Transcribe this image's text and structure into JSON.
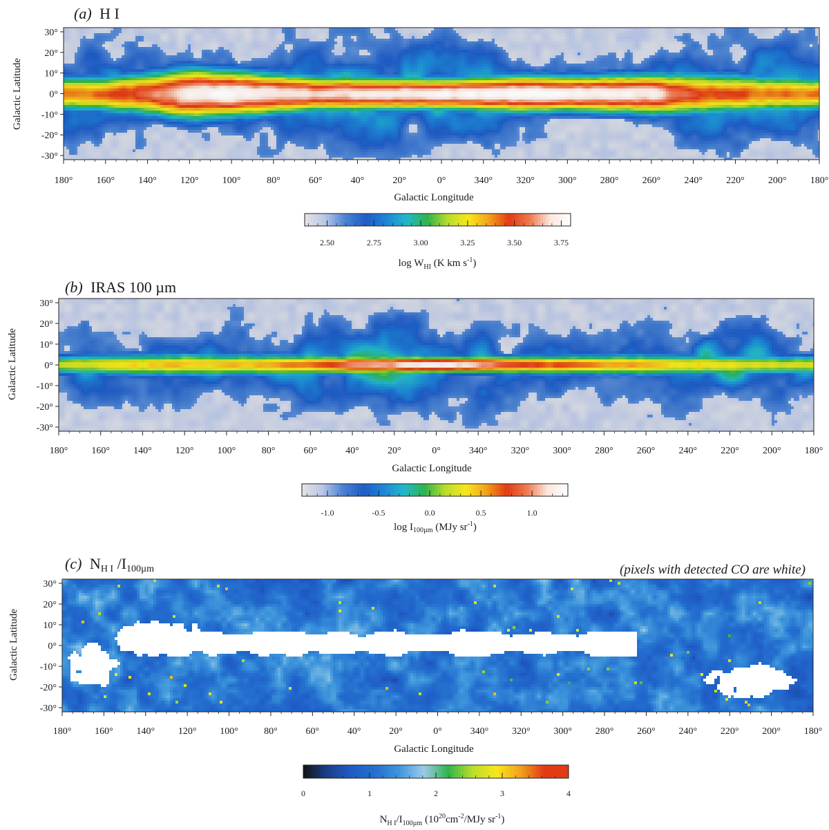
{
  "chart_data": [
    {
      "type": "heatmap",
      "title_letter": "(a)",
      "title_text": "H I",
      "xlabel": "Galactic Longitude",
      "ylabel": "Galactic Latitude",
      "x_ticks": [
        "180°",
        "160°",
        "140°",
        "120°",
        "100°",
        "80°",
        "60°",
        "40°",
        "20°",
        "0°",
        "340°",
        "320°",
        "300°",
        "280°",
        "260°",
        "240°",
        "220°",
        "200°",
        "180°"
      ],
      "y_ticks": [
        "30°",
        "20°",
        "10°",
        "0°",
        "-10°",
        "-20°",
        "-30°"
      ],
      "x_range_deg": [
        180,
        -180
      ],
      "y_range_deg": [
        -32,
        32
      ],
      "colorbar": {
        "label_main": "log W",
        "label_sub": "HI",
        "label_rest": " (K km s",
        "label_sup": "-1",
        "label_end": ")",
        "ticks": [
          "2.50",
          "2.75",
          "3.00",
          "3.25",
          "3.50",
          "3.75"
        ],
        "tick_values": [
          2.5,
          2.75,
          3.0,
          3.25,
          3.5,
          3.75
        ],
        "range": [
          2.38,
          3.8
        ]
      },
      "colormap": [
        "#e4e4e4",
        "#b9c6e6",
        "#4a82d2",
        "#1f5cc6",
        "#1d87d6",
        "#22b8c8",
        "#2fb34c",
        "#b9dd2a",
        "#f7e71c",
        "#f3a21c",
        "#e23a14",
        "#ee7a50",
        "#fbe7de",
        "#ffffff"
      ],
      "profile": {
        "plane_strength": [
          0.72,
          0.74,
          0.82,
          0.98,
          1.0,
          0.96,
          0.92,
          0.95,
          0.97,
          0.98,
          1.0,
          1.0,
          1.0,
          0.98,
          0.96,
          0.78,
          0.76,
          0.72,
          0.72
        ],
        "plane_sigma_deg": [
          6.0,
          6.5,
          7.5,
          9.0,
          8.0,
          7.0,
          6.0,
          6.0,
          5.5,
          5.5,
          6.0,
          6.5,
          6.0,
          6.5,
          7.0,
          7.5,
          7.0,
          6.5,
          6.0
        ],
        "halo_level": [
          0.42,
          0.44,
          0.38,
          0.3,
          0.4,
          0.46,
          0.48,
          0.52,
          0.56,
          0.55,
          0.48,
          0.36,
          0.3,
          0.33,
          0.4,
          0.46,
          0.52,
          0.48,
          0.42
        ]
      }
    },
    {
      "type": "heatmap",
      "title_letter": "(b)",
      "title_text": "IRAS 100 µm",
      "xlabel": "Galactic Longitude",
      "ylabel": "Galactic Latitude",
      "x_ticks": [
        "180°",
        "160°",
        "140°",
        "120°",
        "100°",
        "80°",
        "60°",
        "40°",
        "20°",
        "0°",
        "340°",
        "320°",
        "300°",
        "280°",
        "260°",
        "240°",
        "220°",
        "200°",
        "180°"
      ],
      "y_ticks": [
        "30°",
        "20°",
        "10°",
        "0°",
        "-10°",
        "-20°",
        "-30°"
      ],
      "x_range_deg": [
        180,
        -180
      ],
      "y_range_deg": [
        -32,
        32
      ],
      "colorbar": {
        "label_main": "log I",
        "label_sub": "100µm",
        "label_rest": "  (MJy sr",
        "label_sup": "-1",
        "label_end": ")",
        "ticks": [
          "-1.0",
          "-0.5",
          "0.0",
          "0.5",
          "1.0"
        ],
        "tick_values": [
          -1.0,
          -0.5,
          0.0,
          0.5,
          1.0
        ],
        "range": [
          -1.25,
          1.35
        ]
      },
      "colormap": [
        "#e4e4e4",
        "#b9c6e6",
        "#4a82d2",
        "#1f5cc6",
        "#1d87d6",
        "#22b8c8",
        "#2fb34c",
        "#b9dd2a",
        "#f7e71c",
        "#f3a21c",
        "#e23a14",
        "#ee7a50",
        "#fbe7de",
        "#ffffff"
      ],
      "profile": {
        "plane_strength": [
          0.58,
          0.6,
          0.63,
          0.66,
          0.66,
          0.68,
          0.75,
          0.85,
          0.92,
          1.0,
          0.9,
          0.8,
          0.75,
          0.7,
          0.68,
          0.62,
          0.6,
          0.58,
          0.58
        ],
        "plane_sigma_deg": [
          3.5,
          3.8,
          4.0,
          4.2,
          4.0,
          3.8,
          3.5,
          3.2,
          3.0,
          2.8,
          3.0,
          3.2,
          3.4,
          3.6,
          3.8,
          3.8,
          3.8,
          3.6,
          3.5
        ],
        "halo_level": [
          0.34,
          0.38,
          0.32,
          0.28,
          0.33,
          0.4,
          0.42,
          0.44,
          0.5,
          0.48,
          0.4,
          0.3,
          0.26,
          0.3,
          0.34,
          0.38,
          0.44,
          0.4,
          0.34
        ]
      }
    },
    {
      "type": "heatmap",
      "title_letter": "(c)",
      "title_text": "N",
      "title_sub": "H I",
      "title_mid": " /I",
      "title_sub2": "100µm",
      "note": "(pixels with detected CO are white)",
      "xlabel": "Galactic Longitude",
      "ylabel": "Galactic Latitude",
      "x_ticks": [
        "180°",
        "160°",
        "140°",
        "120°",
        "100°",
        "80°",
        "60°",
        "40°",
        "20°",
        "0°",
        "340°",
        "320°",
        "300°",
        "280°",
        "260°",
        "240°",
        "220°",
        "200°",
        "180°"
      ],
      "y_ticks": [
        "30°",
        "20°",
        "10°",
        "0°",
        "-10°",
        "-20°",
        "-30°"
      ],
      "x_range_deg": [
        180,
        -180
      ],
      "y_range_deg": [
        -32,
        32
      ],
      "colorbar": {
        "label_main": "N",
        "label_sub": "H I",
        "label_mid": "/I",
        "label_sub2": "100µm",
        "label_rest": " (10",
        "label_sup": "20",
        "label_rest2": "cm",
        "label_sup2": "-2",
        "label_end": "/MJy sr",
        "label_sup3": "-1",
        "label_end2": ")",
        "ticks": [
          "0",
          "1",
          "2",
          "3",
          "4"
        ],
        "tick_values": [
          0,
          1,
          2,
          3,
          4
        ],
        "range": [
          0,
          4
        ]
      },
      "colormap": [
        "#141414",
        "#1a3f8a",
        "#1f5cc6",
        "#2470cf",
        "#3f97dc",
        "#9ccbe8",
        "#2fb34c",
        "#b9dd2a",
        "#f7e71c",
        "#f3a21c",
        "#e23a14",
        "#e23a14"
      ],
      "co_mask_color": "#ffffff",
      "background_level": 1.15
    }
  ]
}
